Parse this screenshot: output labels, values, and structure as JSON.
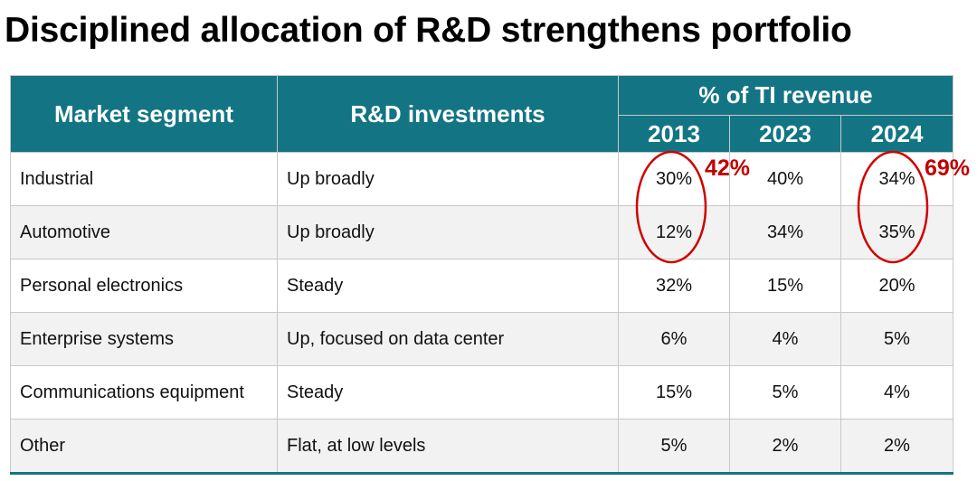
{
  "title": "Disciplined allocation of R&D strengthens portfolio",
  "table": {
    "headers": {
      "segment": "Market segment",
      "rd": "R&D investments",
      "revenue_group": "% of TI revenue",
      "years": [
        "2013",
        "2023",
        "2024"
      ]
    },
    "rows": [
      {
        "segment": "Industrial",
        "rd": "Up broadly",
        "values": [
          "30%",
          "40%",
          "34%"
        ]
      },
      {
        "segment": "Automotive",
        "rd": "Up broadly",
        "values": [
          "12%",
          "34%",
          "35%"
        ]
      },
      {
        "segment": "Personal electronics",
        "rd": "Steady",
        "values": [
          "32%",
          "15%",
          "20%"
        ]
      },
      {
        "segment": "Enterprise systems",
        "rd": "Up, focused on data center",
        "values": [
          "6%",
          "4%",
          "5%"
        ]
      },
      {
        "segment": "Communications equipment",
        "rd": "Steady",
        "values": [
          "15%",
          "5%",
          "4%"
        ]
      },
      {
        "segment": "Other",
        "rd": "Flat, at low levels",
        "values": [
          "5%",
          "2%",
          "2%"
        ]
      }
    ]
  },
  "annotations": {
    "total_2013": "42%",
    "total_2024": "69%",
    "color": "#c00000"
  }
}
